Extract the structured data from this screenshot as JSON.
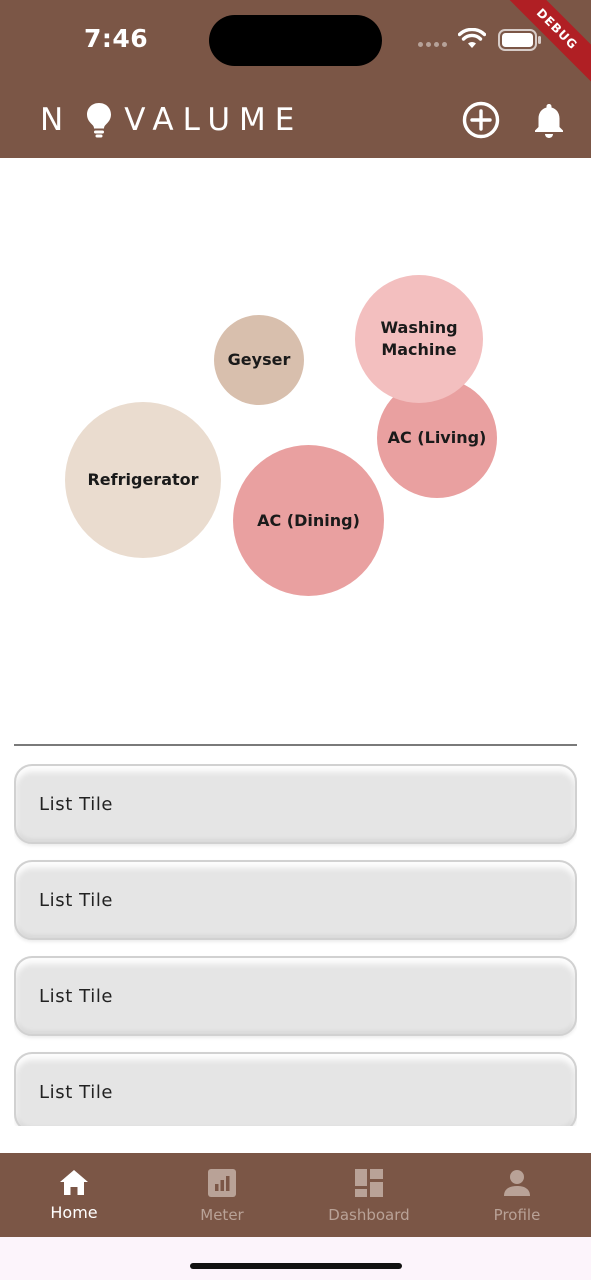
{
  "status_bar": {
    "time": "7:46",
    "debug_label": "DEBUG"
  },
  "header": {
    "logo_text_1": "N",
    "logo_text_2": "VALUME",
    "add_icon": "add-circle-icon",
    "bell_icon": "bell-icon"
  },
  "bubbles": [
    {
      "label": "Washing\nMachine",
      "color": "#f3bfbf"
    },
    {
      "label": "Geyser",
      "color": "#d8bfad"
    },
    {
      "label": "AC (Living)",
      "color": "#e9a0a0"
    },
    {
      "label": "Refrigerator",
      "color": "#eadccf"
    },
    {
      "label": "AC (Dining)",
      "color": "#e9a0a0"
    }
  ],
  "list": {
    "tiles": [
      "List Tile",
      "List Tile",
      "List Tile",
      "List Tile"
    ]
  },
  "bottom_nav": {
    "items": [
      {
        "label": "Home",
        "icon": "home-icon",
        "active": true
      },
      {
        "label": "Meter",
        "icon": "bar-chart-icon",
        "active": false
      },
      {
        "label": "Dashboard",
        "icon": "dashboard-icon",
        "active": false
      },
      {
        "label": "Profile",
        "icon": "person-icon",
        "active": false
      }
    ]
  },
  "colors": {
    "brand": "#7b5646",
    "nav_inactive": "#b9a297",
    "tile_bg": "#e5e5e5"
  }
}
